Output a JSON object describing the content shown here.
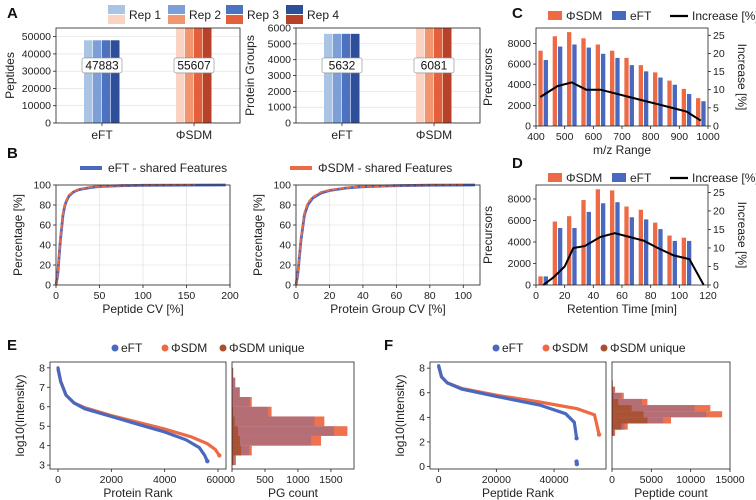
{
  "colors": {
    "eft": [
      "#aac4e4",
      "#7b9fd6",
      "#4d72c0",
      "#2f4e9a"
    ],
    "sdm": [
      "#fbd3c3",
      "#f2966f",
      "#e4603c",
      "#b8412a"
    ],
    "eft_main": "#4a68bd",
    "sdm_main": "#ee6a45",
    "unique": "#a8502d",
    "increase": "#000000"
  },
  "panel_labels": [
    "A",
    "B",
    "C",
    "D",
    "E",
    "F"
  ],
  "reps_legend": {
    "title": "",
    "items": [
      "Rep 1",
      "Rep 2",
      "Rep 3",
      "Rep 4"
    ]
  },
  "chart_data": [
    {
      "id": "A1",
      "type": "bar",
      "title": "",
      "xlabel": "",
      "ylabel": "Peptides",
      "categories": [
        "eFT",
        "ΦSDM"
      ],
      "series": [
        {
          "name": "Rep 1",
          "values": [
            47883,
            55607
          ]
        },
        {
          "name": "Rep 2",
          "values": [
            47883,
            55607
          ]
        },
        {
          "name": "Rep 3",
          "values": [
            47883,
            55607
          ]
        },
        {
          "name": "Rep 4",
          "values": [
            47883,
            55607
          ]
        }
      ],
      "data_labels": [
        "47883",
        "55607"
      ],
      "ylim": [
        0,
        55000
      ],
      "yticks": [
        0,
        10000,
        20000,
        30000,
        40000,
        50000
      ]
    },
    {
      "id": "A2",
      "type": "bar",
      "title": "",
      "xlabel": "",
      "ylabel": "Protein Groups",
      "categories": [
        "eFT",
        "ΦSDM"
      ],
      "series": [
        {
          "name": "Rep 1",
          "values": [
            5632,
            6081
          ]
        },
        {
          "name": "Rep 2",
          "values": [
            5632,
            6081
          ]
        },
        {
          "name": "Rep 3",
          "values": [
            5632,
            6081
          ]
        },
        {
          "name": "Rep 4",
          "values": [
            5632,
            6081
          ]
        }
      ],
      "data_labels": [
        "5632",
        "6081"
      ],
      "ylim": [
        0,
        6000
      ],
      "yticks": [
        0,
        1000,
        2000,
        3000,
        4000,
        5000,
        6000
      ]
    },
    {
      "id": "B1",
      "type": "line",
      "title": "",
      "xlabel": "Peptide CV [%]",
      "ylabel": "Percentage [%]",
      "legend": [
        "eFT - shared Features",
        "ΦSDM - shared Features"
      ],
      "series": [
        {
          "name": "eFT - shared Features",
          "x": [
            0,
            2,
            5,
            8,
            10,
            12,
            15,
            20,
            25,
            30,
            40,
            50,
            75,
            100,
            150,
            195
          ],
          "y": [
            0,
            10,
            45,
            70,
            79,
            84,
            89,
            93,
            95,
            96,
            97.5,
            98.5,
            99.3,
            99.7,
            99.9,
            100
          ]
        },
        {
          "name": "ΦSDM - shared Features",
          "x": [
            0,
            2,
            5,
            8,
            10,
            12,
            15,
            20,
            25,
            30,
            40,
            50,
            75,
            100,
            150,
            160
          ],
          "y": [
            0,
            11,
            47,
            71,
            80,
            85,
            90,
            93.5,
            95.5,
            96.5,
            98,
            98.8,
            99.5,
            99.8,
            100,
            100
          ]
        }
      ],
      "xlim": [
        0,
        200
      ],
      "ylim": [
        0,
        100
      ],
      "xticks": [
        0,
        50,
        100,
        150,
        200
      ],
      "yticks": [
        0,
        20,
        40,
        60,
        80,
        100
      ]
    },
    {
      "id": "B2",
      "type": "line",
      "title": "",
      "xlabel": "Protein Group CV [%]",
      "ylabel": "Percentage [%]",
      "series": [
        {
          "name": "eFT - shared Features",
          "x": [
            0,
            1,
            3,
            5,
            7,
            10,
            15,
            20,
            30,
            40,
            60,
            80,
            107
          ],
          "y": [
            0,
            10,
            45,
            70,
            80,
            87,
            92,
            94.5,
            97,
            98.3,
            99.3,
            99.8,
            100
          ]
        },
        {
          "name": "ΦSDM - shared Features",
          "x": [
            0,
            1,
            3,
            5,
            7,
            10,
            15,
            20,
            30,
            40,
            60,
            80,
            100
          ],
          "y": [
            0,
            11,
            47,
            72,
            82,
            88,
            93,
            95,
            97.5,
            98.5,
            99.5,
            99.9,
            100
          ]
        }
      ],
      "xlim": [
        0,
        110
      ],
      "ylim": [
        0,
        100
      ],
      "xticks": [
        0,
        20,
        40,
        60,
        80,
        100
      ],
      "yticks": [
        0,
        20,
        40,
        60,
        80,
        100
      ]
    },
    {
      "id": "C",
      "type": "bar",
      "title": "",
      "xlabel": "m/z Range",
      "ylabel": "Precursors",
      "y2label": "Increase [%]",
      "legend": [
        "ΦSDM",
        "eFT",
        "Increase [%]"
      ],
      "categories": [
        425,
        475,
        525,
        575,
        625,
        675,
        725,
        775,
        825,
        875,
        925,
        975
      ],
      "series": [
        {
          "name": "ΦSDM",
          "values": [
            7300,
            8700,
            9100,
            8500,
            7900,
            7300,
            6600,
            5900,
            5200,
            4400,
            3600,
            2700
          ]
        },
        {
          "name": "eFT",
          "values": [
            6400,
            7700,
            7900,
            7600,
            7000,
            6600,
            5900,
            5300,
            4700,
            4000,
            3100,
            2400
          ]
        }
      ],
      "increase": {
        "x": [
          415,
          475,
          525,
          575,
          625,
          675,
          725,
          775,
          825,
          875,
          925,
          975
        ],
        "y": [
          8,
          11,
          12,
          10,
          10,
          9,
          8,
          7,
          6,
          5,
          4,
          1.5
        ]
      },
      "xlim": [
        400,
        1000
      ],
      "ylim": [
        0,
        9500
      ],
      "y2lim": [
        0,
        27
      ],
      "xticks": [
        400,
        500,
        600,
        700,
        800,
        900,
        1000
      ],
      "yticks": [
        0,
        2000,
        4000,
        6000,
        8000
      ],
      "y2ticks": [
        0,
        5,
        10,
        15,
        20,
        25
      ]
    },
    {
      "id": "D",
      "type": "bar",
      "title": "",
      "xlabel": "Retention Time [min]",
      "ylabel": "Precursors",
      "y2label": "Increase [%]",
      "legend": [
        "ΦSDM",
        "eFT",
        "Increase [%]"
      ],
      "categories": [
        5,
        15,
        25,
        35,
        45,
        55,
        65,
        75,
        85,
        95,
        105
      ],
      "series": [
        {
          "name": "ΦSDM",
          "values": [
            800,
            5900,
            6400,
            7900,
            8900,
            8800,
            7300,
            7000,
            5800,
            4600,
            4400
          ]
        },
        {
          "name": "eFT",
          "values": [
            800,
            5300,
            5300,
            6800,
            7600,
            7700,
            6300,
            6100,
            5200,
            4100,
            4100
          ]
        }
      ],
      "increase": {
        "x": [
          5,
          12,
          20,
          26,
          34,
          45,
          55,
          65,
          75,
          85,
          96,
          107,
          117
        ],
        "y": [
          0,
          2,
          5,
          10,
          10.5,
          13,
          14,
          13,
          12,
          10,
          8,
          7,
          0
        ]
      },
      "xlim": [
        0,
        120
      ],
      "ylim": [
        0,
        9300
      ],
      "y2lim": [
        0,
        27
      ],
      "xticks": [
        0,
        20,
        40,
        60,
        80,
        100,
        120
      ],
      "yticks": [
        0,
        2000,
        4000,
        6000,
        8000
      ],
      "y2ticks": [
        0,
        5,
        10,
        15,
        20,
        25
      ]
    },
    {
      "id": "E1",
      "type": "scatter",
      "title": "",
      "xlabel": "Protein Rank",
      "ylabel": "log10(Intensity)",
      "legend": [
        "eFT",
        "ΦSDM",
        "ΦSDM unique"
      ],
      "series": [
        {
          "name": "eFT",
          "x": [
            0,
            100,
            300,
            600,
            1000,
            2000,
            3000,
            4000,
            4800,
            5300,
            5500,
            5600
          ],
          "y": [
            8.0,
            7.3,
            6.6,
            6.2,
            5.9,
            5.5,
            5.1,
            4.7,
            4.3,
            3.9,
            3.5,
            3.2
          ]
        },
        {
          "name": "ΦSDM",
          "x": [
            0,
            100,
            300,
            600,
            1000,
            2000,
            3000,
            4000,
            5000,
            5600,
            5900,
            6050
          ],
          "y": [
            7.9,
            7.3,
            6.6,
            6.2,
            5.95,
            5.55,
            5.2,
            4.85,
            4.45,
            4.1,
            3.8,
            3.5
          ]
        },
        {
          "name": "ΦSDM unique",
          "x": [],
          "y": []
        }
      ],
      "xlim": [
        -300,
        6300
      ],
      "ylim": [
        2.8,
        8.3
      ],
      "xticks": [
        0,
        2000,
        4000,
        6000
      ],
      "yticks": [
        3,
        4,
        5,
        6,
        7,
        8
      ]
    },
    {
      "id": "E2",
      "type": "bar",
      "orientation": "horizontal",
      "title": "",
      "xlabel": "PG count",
      "ylabel": "",
      "bin_edges": [
        3,
        3.5,
        4,
        4.5,
        5,
        5.5,
        6,
        6.5,
        7,
        7.5,
        8
      ],
      "series": [
        {
          "name": "ΦSDM",
          "values": [
            60,
            300,
            1350,
            1750,
            1400,
            600,
            300,
            120,
            50,
            20
          ]
        },
        {
          "name": "eFT",
          "values": [
            40,
            260,
            1200,
            1550,
            1250,
            550,
            270,
            110,
            45,
            15
          ]
        },
        {
          "name": "ΦSDM unique",
          "values": [
            20,
            140,
            120,
            90,
            40,
            15,
            5,
            0,
            0,
            0
          ]
        }
      ],
      "xlim": [
        0,
        1850
      ],
      "ylim": [
        2.8,
        8.3
      ],
      "xticks": [
        0,
        500,
        1000,
        1500
      ]
    },
    {
      "id": "F1",
      "type": "scatter",
      "title": "",
      "xlabel": "Peptide Rank",
      "ylabel": "log10(Intensity)",
      "legend": [
        "eFT",
        "ΦSDM",
        "ΦSDM unique"
      ],
      "series": [
        {
          "name": "eFT",
          "x": [
            0,
            1000,
            3000,
            8000,
            20000,
            35000,
            44000,
            47000,
            47800
          ],
          "y": [
            8.2,
            7.3,
            6.8,
            6.3,
            5.7,
            5.0,
            4.3,
            3.6,
            2.3
          ]
        },
        {
          "name": "ΦSDM",
          "x": [
            0,
            1000,
            3000,
            8000,
            20000,
            35000,
            48000,
            54000,
            55600
          ],
          "y": [
            8.1,
            7.3,
            6.8,
            6.35,
            5.8,
            5.25,
            4.7,
            4.2,
            2.6
          ]
        },
        {
          "name": "ΦSDM unique",
          "x": [],
          "y": []
        }
      ],
      "outliers": {
        "x": [
          47800,
          47900
        ],
        "y": [
          0.4,
          0.2
        ]
      },
      "xlim": [
        -3000,
        58000
      ],
      "ylim": [
        -0.2,
        8.5
      ],
      "xticks": [
        0,
        20000,
        40000
      ],
      "yticks": [
        0,
        2,
        4,
        6,
        8
      ]
    },
    {
      "id": "F2",
      "type": "bar",
      "orientation": "horizontal",
      "title": "",
      "xlabel": "Peptide count",
      "ylabel": "",
      "bin_edges": [
        2.5,
        3,
        3.5,
        4,
        4.5,
        5,
        5.5,
        6,
        6.5,
        7
      ],
      "series": [
        {
          "name": "ΦSDM",
          "values": [
            400,
            2000,
            7500,
            14000,
            12500,
            4500,
            1500,
            400,
            100
          ]
        },
        {
          "name": "eFT",
          "values": [
            300,
            1600,
            6500,
            12000,
            10500,
            3800,
            1200,
            300,
            80
          ]
        },
        {
          "name": "ΦSDM unique",
          "values": [
            200,
            1200,
            4500,
            4000,
            2500,
            800,
            200,
            50,
            10
          ]
        }
      ],
      "xlim": [
        0,
        15000
      ],
      "ylim": [
        -0.2,
        8.5
      ],
      "xticks": [
        0,
        5000,
        10000,
        15000
      ]
    }
  ]
}
